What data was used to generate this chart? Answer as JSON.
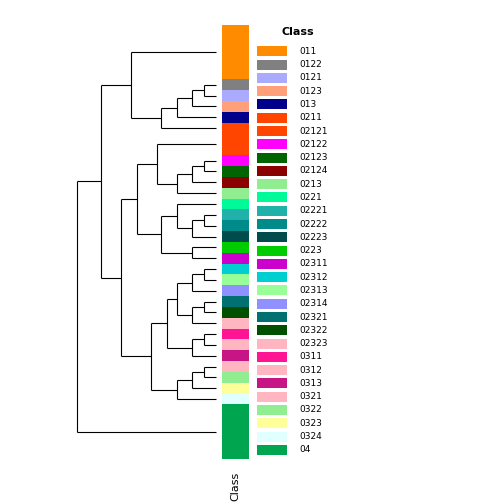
{
  "classes": [
    {
      "name": "011",
      "color": "#FF8C00",
      "size": 5
    },
    {
      "name": "0122",
      "color": "#808080",
      "size": 1
    },
    {
      "name": "0121",
      "color": "#AAAAFF",
      "size": 1
    },
    {
      "name": "0123",
      "color": "#FFA07A",
      "size": 1
    },
    {
      "name": "013",
      "color": "#00008B",
      "size": 1
    },
    {
      "name": "0211",
      "color": "#FF4500",
      "size": 1
    },
    {
      "name": "02121",
      "color": "#FF4500",
      "size": 2
    },
    {
      "name": "02122",
      "color": "#FF00FF",
      "size": 1
    },
    {
      "name": "02123",
      "color": "#006400",
      "size": 1
    },
    {
      "name": "02124",
      "color": "#8B0000",
      "size": 1
    },
    {
      "name": "0213",
      "color": "#90EE90",
      "size": 1
    },
    {
      "name": "0221",
      "color": "#00FA9A",
      "size": 1
    },
    {
      "name": "02221",
      "color": "#20B2AA",
      "size": 1
    },
    {
      "name": "02222",
      "color": "#008B8B",
      "size": 1
    },
    {
      "name": "02223",
      "color": "#004B4B",
      "size": 1
    },
    {
      "name": "0223",
      "color": "#00CC00",
      "size": 1
    },
    {
      "name": "02311",
      "color": "#CC00CC",
      "size": 1
    },
    {
      "name": "02312",
      "color": "#00CED1",
      "size": 1
    },
    {
      "name": "02313",
      "color": "#98FF98",
      "size": 1
    },
    {
      "name": "02314",
      "color": "#9090FF",
      "size": 1
    },
    {
      "name": "02321",
      "color": "#007070",
      "size": 1
    },
    {
      "name": "02322",
      "color": "#005000",
      "size": 1
    },
    {
      "name": "02323",
      "color": "#FFB6C1",
      "size": 1
    },
    {
      "name": "0311",
      "color": "#FF1493",
      "size": 1
    },
    {
      "name": "0312",
      "color": "#FFB6C1",
      "size": 1
    },
    {
      "name": "0313",
      "color": "#C71585",
      "size": 1
    },
    {
      "name": "0321",
      "color": "#FFB6C1",
      "size": 1
    },
    {
      "name": "0322",
      "color": "#90EE90",
      "size": 1
    },
    {
      "name": "0323",
      "color": "#FFFF99",
      "size": 1
    },
    {
      "name": "0324",
      "color": "#E0FFFF",
      "size": 1
    },
    {
      "name": "04",
      "color": "#00A550",
      "size": 5
    }
  ],
  "title": "",
  "xlabel": "Class",
  "background_color": "#FFFFFF",
  "legend_title": "Class",
  "fig_width": 5.04,
  "fig_height": 5.04,
  "dpi": 100
}
